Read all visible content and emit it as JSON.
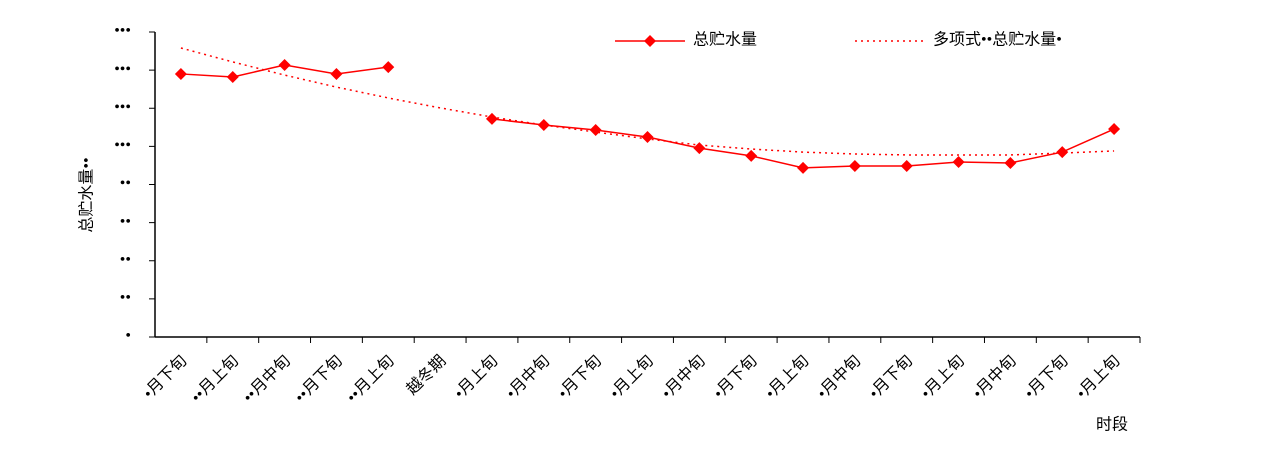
{
  "chart_data": {
    "type": "line",
    "y_label": "总贮水量••",
    "x_label": "时段",
    "categories": [
      "•月下旬",
      "••月上旬",
      "••月中旬",
      "••月下旬",
      "••月上旬",
      "越冬期",
      "•月上旬",
      "•月中旬",
      "•月下旬",
      "•月上旬",
      "•月中旬",
      "•月下旬",
      "•月上旬",
      "•月中旬",
      "•月下旬",
      "•月上旬",
      "•月中旬",
      "•月下旬",
      "•月上旬"
    ],
    "series": [
      {
        "name": "总贮水量",
        "color": "#ff0000",
        "line_style": "solid",
        "marker": "diamond",
        "values": [
          138.0,
          136.4,
          142.7,
          138.0,
          141.6,
          null,
          114.4,
          111.2,
          108.6,
          104.9,
          99.1,
          95.0,
          88.7,
          89.7,
          89.7,
          91.8,
          91.3,
          97.0,
          109.1
        ]
      },
      {
        "name": "多项式••总贮水量•",
        "color": "#ff0000",
        "line_style": "dotted",
        "marker": "none",
        "values": [
          151.6,
          144.3,
          137.4,
          131.1,
          125.4,
          120.2,
          115.4,
          111.2,
          107.5,
          103.9,
          100.7,
          98.6,
          97.0,
          96.0,
          95.5,
          95.5,
          95.5,
          96.5,
          97.6
        ]
      }
    ],
    "ylim": [
      0,
      160
    ],
    "yticks": [
      {
        "value": 0,
        "label": "•"
      },
      {
        "value": 20,
        "label": "••"
      },
      {
        "value": 40,
        "label": "••"
      },
      {
        "value": 60,
        "label": "••"
      },
      {
        "value": 80,
        "label": "••"
      },
      {
        "value": 100,
        "label": "•••"
      },
      {
        "value": 120,
        "label": "•••"
      },
      {
        "value": 140,
        "label": "•••"
      },
      {
        "value": 160,
        "label": "•••"
      }
    ],
    "grid": false,
    "legend": "top"
  }
}
